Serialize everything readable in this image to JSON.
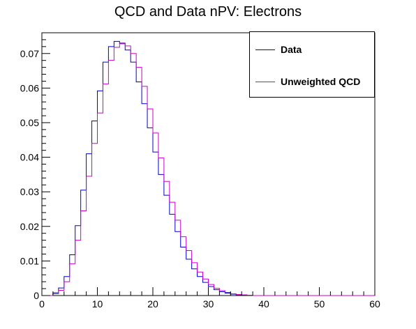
{
  "chart_data": {
    "type": "line",
    "title": "QCD and Data nPV: Electrons",
    "xlabel": "",
    "ylabel": "",
    "xlim": [
      0,
      60
    ],
    "ylim": [
      0,
      0.076
    ],
    "xticks": [
      0,
      10,
      20,
      30,
      40,
      50,
      60
    ],
    "yticks": [
      0,
      0.01,
      0.02,
      0.03,
      0.04,
      0.05,
      0.06,
      0.07
    ],
    "ytick_labels": [
      "0",
      "0.01",
      "0.02",
      "0.03",
      "0.04",
      "0.05",
      "0.06",
      "0.07"
    ],
    "xtick_labels": [
      "0",
      "10",
      "20",
      "30",
      "40",
      "50",
      "60"
    ],
    "legend_position": "top-right",
    "bin_edges_start": 0,
    "bin_width": 1,
    "series": [
      {
        "name": "Data",
        "color": "#0000cc",
        "values": [
          0,
          0,
          0.0008,
          0.0022,
          0.0055,
          0.0118,
          0.0202,
          0.0305,
          0.041,
          0.0505,
          0.0592,
          0.0675,
          0.072,
          0.0735,
          0.073,
          0.071,
          0.0675,
          0.0618,
          0.0555,
          0.0485,
          0.0415,
          0.035,
          0.029,
          0.0235,
          0.0185,
          0.014,
          0.0105,
          0.0077,
          0.0055,
          0.0038,
          0.0026,
          0.0017,
          0.0011,
          0.0007,
          0.0004,
          0.0002,
          0.0001,
          0.0001,
          0,
          0,
          0,
          0,
          0,
          0,
          0,
          0,
          0,
          0,
          0,
          0,
          0,
          0,
          0,
          0,
          0,
          0,
          0,
          0,
          0,
          0
        ]
      },
      {
        "name": "Unweighted QCD",
        "color": "#cc00cc",
        "values": [
          0,
          0,
          0.0005,
          0.0015,
          0.004,
          0.0092,
          0.016,
          0.0245,
          0.0345,
          0.044,
          0.0528,
          0.0612,
          0.068,
          0.0718,
          0.0728,
          0.0722,
          0.07,
          0.066,
          0.0605,
          0.054,
          0.047,
          0.0398,
          0.033,
          0.027,
          0.0218,
          0.017,
          0.013,
          0.0095,
          0.0068,
          0.0048,
          0.0032,
          0.0021,
          0.0014,
          0.0009,
          0.0005,
          0.0003,
          0.0002,
          0.0001,
          0,
          0,
          0,
          0,
          0,
          0,
          0,
          0,
          0,
          0,
          0,
          0,
          0,
          0,
          0,
          0,
          0,
          0,
          0,
          0,
          0,
          0
        ]
      }
    ]
  }
}
